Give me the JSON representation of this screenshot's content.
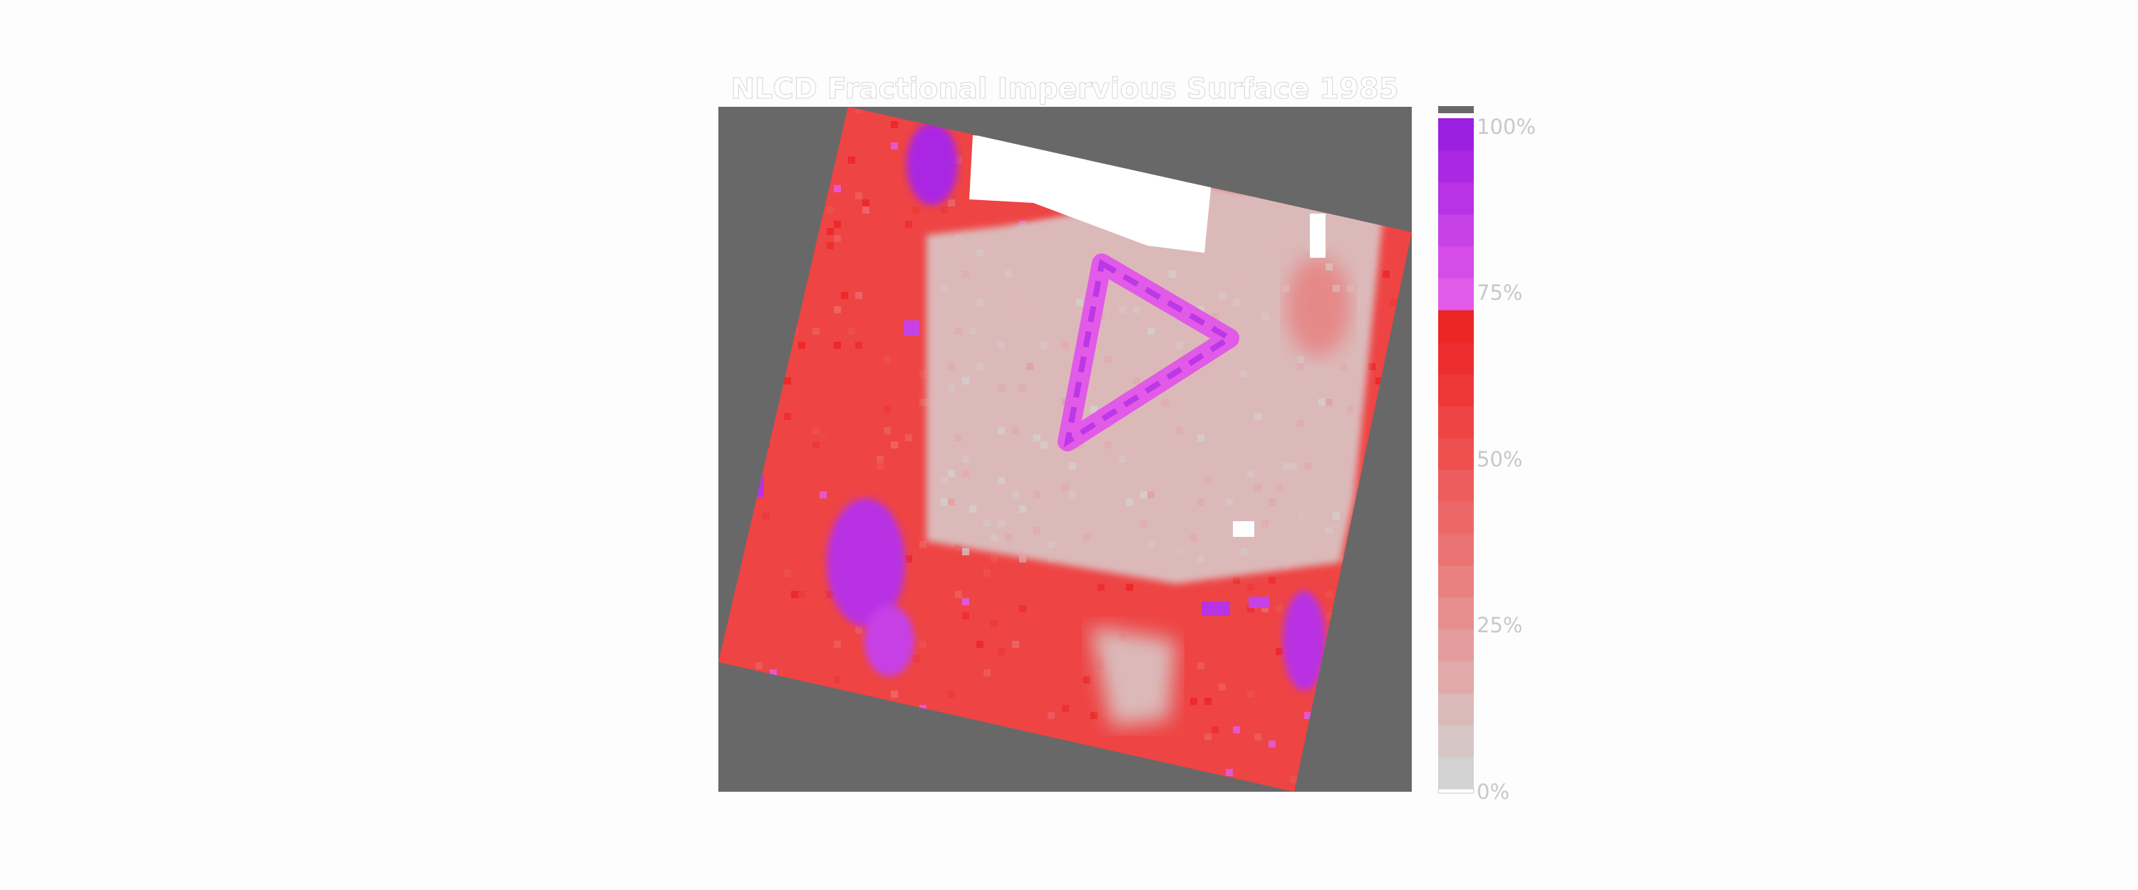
{
  "chart_data": {
    "type": "heatmap",
    "title": "NLCD Fractional Impervious Surface 1985",
    "colorbar": {
      "tick_labels": [
        "100%",
        "75%",
        "50%",
        "25%",
        "0%"
      ],
      "tick_values": [
        100,
        75,
        50,
        25,
        0
      ],
      "range": [
        0,
        100
      ],
      "colors": [
        "#d2d2d2",
        "#d7c6c6",
        "#dcb9b9",
        "#e0aaaa",
        "#e39c9c",
        "#e78e8e",
        "#e98181",
        "#eb7373",
        "#ec6868",
        "#ed5d5d",
        "#ee5050",
        "#ee4444",
        "#ee3838",
        "#ed2d2d",
        "#ec2525",
        "#e25ae8",
        "#d54ce8",
        "#c641e6",
        "#b833e4",
        "#aa28e2",
        "#9c20df"
      ]
    },
    "nodata_color": "#686868",
    "no_value_color": "#ffffff",
    "regions": [
      {
        "name": "background-field",
        "value": 55
      },
      {
        "name": "central-light-area",
        "value": 8
      },
      {
        "name": "white-band-top",
        "value": null
      },
      {
        "name": "triangle-outline",
        "value": 75
      },
      {
        "name": "triangle-vertices",
        "value": 90
      },
      {
        "name": "purple-patch-top",
        "value": 95
      },
      {
        "name": "purple-patch-left",
        "value": 92
      },
      {
        "name": "purple-patch-right",
        "value": 90
      },
      {
        "name": "light-patch-bottom",
        "value": 12
      }
    ],
    "grid": false
  }
}
